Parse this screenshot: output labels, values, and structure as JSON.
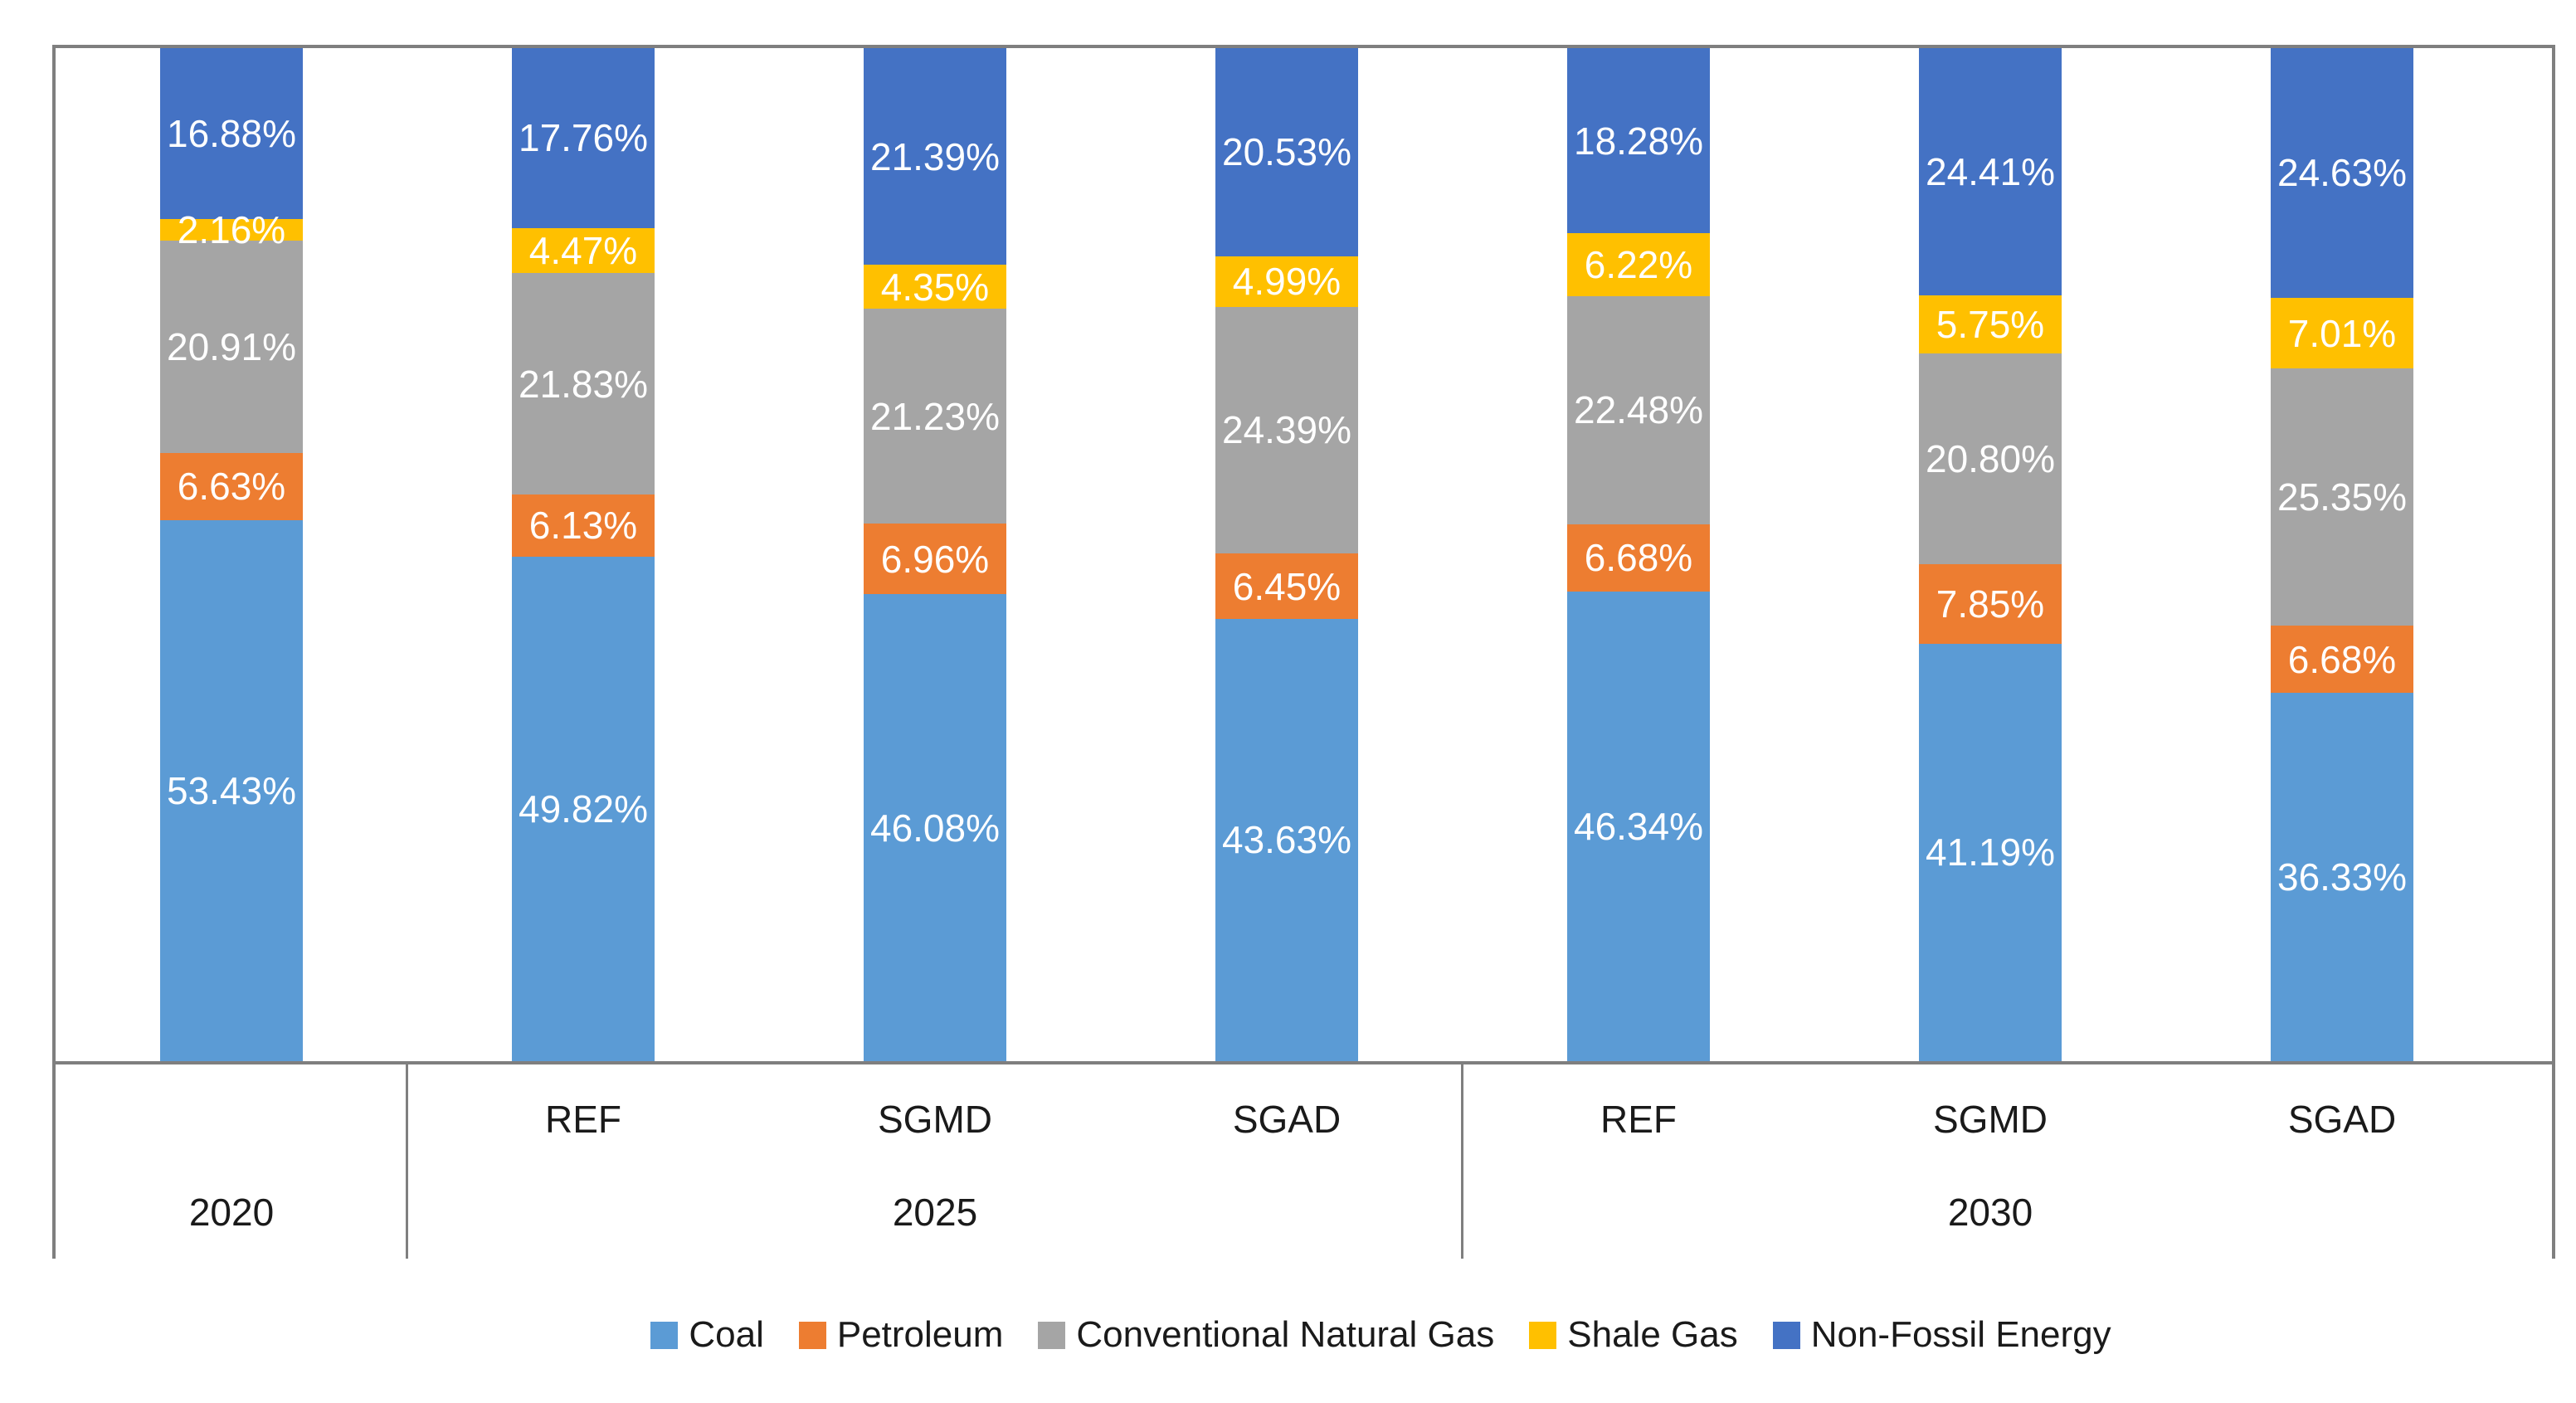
{
  "chart_data": {
    "type": "bar",
    "subtype": "stacked-100-percent",
    "title": "",
    "xlabel": "",
    "ylabel": "",
    "ylim": [
      0,
      100
    ],
    "grid": false,
    "legend_position": "bottom",
    "value_suffix": "%",
    "categories": [
      "2020",
      "2025 REF",
      "2025 SGMD",
      "2025 SGAD",
      "2030 REF",
      "2030 SGMD",
      "2030 SGAD"
    ],
    "series": [
      {
        "name": "Coal",
        "color": "#5B9BD5",
        "values": [
          53.43,
          49.82,
          46.08,
          43.63,
          46.34,
          41.19,
          36.33
        ]
      },
      {
        "name": "Petroleum",
        "color": "#ED7D31",
        "values": [
          6.63,
          6.13,
          6.96,
          6.45,
          6.68,
          7.85,
          6.68
        ]
      },
      {
        "name": "Conventional Natural Gas",
        "color": "#A5A5A5",
        "values": [
          20.91,
          21.83,
          21.23,
          24.39,
          22.48,
          20.8,
          25.35
        ]
      },
      {
        "name": "Shale Gas",
        "color": "#FFC000",
        "values": [
          2.16,
          4.47,
          4.35,
          4.99,
          6.22,
          5.75,
          7.01
        ]
      },
      {
        "name": "Non-Fossil Energy",
        "color": "#4472C4",
        "values": [
          16.88,
          17.76,
          21.39,
          20.53,
          18.28,
          24.41,
          24.63
        ]
      }
    ],
    "axis": {
      "scenario_labels": [
        "REF",
        "SGMD",
        "SGAD",
        "REF",
        "SGMD",
        "SGAD"
      ],
      "year_groups": [
        {
          "label": "2020",
          "bars": 1
        },
        {
          "label": "2025",
          "bars": 3
        },
        {
          "label": "2030",
          "bars": 3
        }
      ],
      "line_color": "#7F7F7F"
    },
    "legend": [
      "Coal",
      "Petroleum",
      "Conventional Natural Gas",
      "Shale Gas",
      "Non-Fossil Energy"
    ]
  }
}
